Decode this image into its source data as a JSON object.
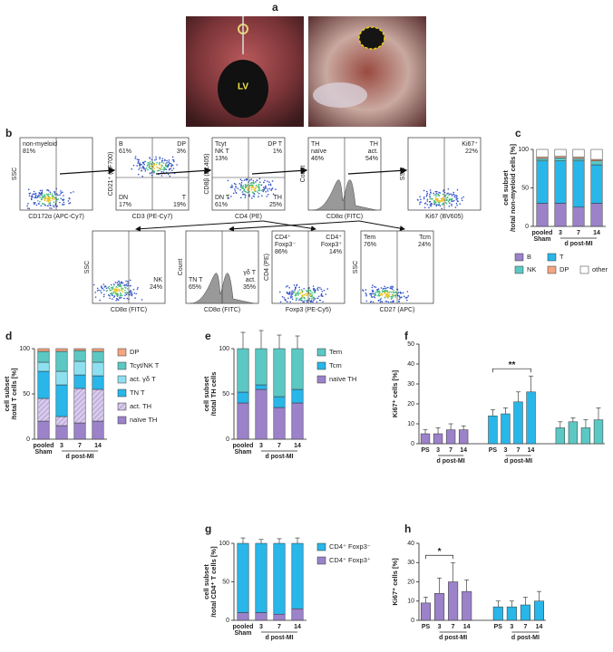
{
  "panel_labels": [
    "a",
    "b",
    "c",
    "d",
    "e",
    "f",
    "g",
    "h"
  ],
  "photo": {
    "label": "LV"
  },
  "flow_plots": [
    {
      "kind": "scatter",
      "xlabel": "CD172α (APC-Cy7)",
      "ylabel": "SSC",
      "gates": [
        {
          "corner": "tl",
          "lines": [
            "non-myeloid",
            "81%"
          ]
        }
      ]
    },
    {
      "kind": "scatter",
      "xlabel": "CD3 (PE-Cy7)",
      "ylabel": "CD21⁺ (AF700)",
      "gates": [
        {
          "corner": "tl",
          "lines": [
            "B",
            "61%"
          ]
        },
        {
          "corner": "tr",
          "lines": [
            "DP",
            "3%"
          ]
        },
        {
          "corner": "bl",
          "lines": [
            "DN",
            "17%"
          ]
        },
        {
          "corner": "br",
          "lines": [
            "T",
            "19%"
          ]
        }
      ]
    },
    {
      "kind": "scatter",
      "xlabel": "CD4 (PE)",
      "ylabel": "CD8β (DL405)",
      "gates": [
        {
          "corner": "tl",
          "lines": [
            "Tcyt",
            "NK T",
            "13%"
          ]
        },
        {
          "corner": "tr",
          "lines": [
            "DP T",
            "1%"
          ]
        },
        {
          "corner": "bl",
          "lines": [
            "DN T",
            "61%"
          ]
        },
        {
          "corner": "br",
          "lines": [
            "TH",
            "25%"
          ]
        }
      ]
    },
    {
      "kind": "histogram",
      "xlabel": "CD8α (FITC)",
      "ylabel": "Count",
      "gates": [
        {
          "corner": "tl",
          "lines": [
            "TH",
            "naïve",
            "46%"
          ]
        },
        {
          "corner": "tr",
          "lines": [
            "TH",
            "act.",
            "54%"
          ]
        }
      ]
    },
    {
      "kind": "scatter",
      "xlabel": "Ki67 (BV605)",
      "ylabel": "SSC",
      "gates": [
        {
          "corner": "tr",
          "lines": [
            "Ki67⁺",
            "22%"
          ]
        }
      ]
    },
    {
      "kind": "scatter",
      "xlabel": "CD8α (FITC)",
      "ylabel": "SSC",
      "gates": [
        {
          "corner": "br",
          "lines": [
            "NK",
            "24%"
          ]
        }
      ]
    },
    {
      "kind": "histogram",
      "xlabel": "CD8α (FITC)",
      "ylabel": "Count",
      "gates": [
        {
          "corner": "bl",
          "lines": [
            "TN T",
            "65%"
          ]
        },
        {
          "corner": "br",
          "lines": [
            "γδ T",
            "act.",
            "35%"
          ]
        }
      ]
    },
    {
      "kind": "scatter",
      "xlabel": "Foxp3 (PE-Cy5)",
      "ylabel": "CD4 (PE)",
      "gates": [
        {
          "corner": "tl",
          "lines": [
            "CD4⁺",
            "Foxp3⁻",
            "86%"
          ]
        },
        {
          "corner": "tr",
          "lines": [
            "CD4⁺",
            "Foxp3⁺",
            "14%"
          ]
        }
      ]
    },
    {
      "kind": "scatter",
      "xlabel": "CD27 (APC)",
      "ylabel": "SSC",
      "gates": [
        {
          "corner": "tl",
          "lines": [
            "Tem",
            "76%"
          ]
        },
        {
          "corner": "tr",
          "lines": [
            "Tcm",
            "24%"
          ]
        }
      ]
    }
  ],
  "chart_data": [
    {
      "type": "stacked_bar",
      "ylabel": [
        "cell subset",
        "/total non-myeloid cells [%]"
      ],
      "categories": [
        "pooled",
        "3",
        "7",
        "14"
      ],
      "group_labels": [
        "Sham",
        "d post-MI"
      ],
      "ylim": [
        0,
        100
      ],
      "yticks": [
        0,
        50,
        100
      ],
      "legend": "bottom",
      "series": [
        {
          "name": "B",
          "color": "#9b82c9",
          "values": [
            30,
            30,
            25,
            30
          ],
          "errors": [
            5,
            6,
            5,
            6
          ]
        },
        {
          "name": "T",
          "color": "#29b6e8",
          "values": [
            55,
            55,
            60,
            50
          ],
          "errors": [
            4,
            5,
            4,
            5
          ]
        },
        {
          "name": "NK",
          "color": "#5cc8c4",
          "values": [
            3,
            4,
            3,
            5
          ]
        },
        {
          "name": "DP",
          "color": "#f4a582",
          "values": [
            2,
            2,
            2,
            2
          ]
        },
        {
          "name": "other",
          "color": "#ffffff",
          "values": [
            10,
            9,
            10,
            13
          ]
        }
      ]
    },
    {
      "type": "stacked_bar",
      "ylabel": [
        "cell subset",
        "/total T cells  [%]"
      ],
      "categories": [
        "pooled",
        "3",
        "7",
        "14"
      ],
      "group_labels": [
        "Sham",
        "d post-MI"
      ],
      "ylim": [
        0,
        100
      ],
      "yticks": [
        0,
        50,
        100
      ],
      "legend": "right",
      "series": [
        {
          "name": "naïve TH",
          "color": "#9b82c9",
          "values": [
            20,
            15,
            18,
            20
          ],
          "errors": [
            4,
            3,
            4,
            5
          ]
        },
        {
          "name": "act. TH",
          "color": "#d8cbeb",
          "hatch": true,
          "values": [
            25,
            10,
            38,
            35
          ],
          "errors": [
            5,
            4,
            6,
            5
          ]
        },
        {
          "name": "TN T",
          "color": "#29b6e8",
          "values": [
            30,
            35,
            15,
            15
          ],
          "errors": [
            5,
            6,
            4,
            4
          ]
        },
        {
          "name": "act. γδ T",
          "color": "#8ee0f0",
          "values": [
            10,
            15,
            15,
            15
          ]
        },
        {
          "name": "Tcyt/NK T",
          "color": "#5cc8c4",
          "values": [
            12,
            22,
            12,
            12
          ]
        },
        {
          "name": "DP",
          "color": "#f4a582",
          "values": [
            3,
            3,
            2,
            3
          ]
        }
      ]
    },
    {
      "type": "stacked_bar",
      "ylabel": [
        "cell subset",
        "/total TH cells"
      ],
      "categories": [
        "pooled",
        "3",
        "7",
        "14"
      ],
      "group_labels": [
        "Sham",
        "d post-MI"
      ],
      "ylim": [
        0,
        100
      ],
      "yticks": [
        0,
        50,
        100
      ],
      "legend": "right",
      "series": [
        {
          "name": "naïve TH",
          "color": "#9b82c9",
          "values": [
            40,
            55,
            35,
            40
          ],
          "errors": [
            8,
            10,
            9,
            8
          ]
        },
        {
          "name": "Tcm",
          "color": "#29b6e8",
          "values": [
            12,
            5,
            12,
            15
          ],
          "errors": [
            4,
            3,
            4,
            5
          ]
        },
        {
          "name": "Tem",
          "color": "#5cc8c4",
          "values": [
            48,
            40,
            53,
            45
          ],
          "errors": [
            18,
            20,
            15,
            14
          ]
        }
      ]
    },
    {
      "type": "grouped_bar",
      "ylabel": [
        "Ki67⁺ cells [%]"
      ],
      "categories": [
        "PS",
        "3",
        "7",
        "14"
      ],
      "group_labels": [
        "d post-MI",
        "d post-MI"
      ],
      "ylim": [
        0,
        50
      ],
      "yticks": [
        0,
        10,
        20,
        30,
        40,
        50
      ],
      "series": [
        {
          "color": "#9b82c9",
          "values": [
            5,
            5,
            7,
            7
          ],
          "errors": [
            2,
            3,
            3,
            2
          ]
        },
        {
          "color": "#29b6e8",
          "values": [
            14,
            15,
            21,
            26
          ],
          "errors": [
            3,
            3,
            5,
            8
          ]
        },
        {
          "color": "#5cc8c4",
          "values": [
            8,
            11,
            8,
            12
          ],
          "errors": [
            3,
            2,
            4,
            6
          ]
        }
      ],
      "annotations": [
        {
          "text": "**",
          "series": 1,
          "from": 0,
          "to": 3
        }
      ]
    },
    {
      "type": "stacked_bar",
      "ylabel": [
        "cell subset",
        "/total CD4⁺ T cells [%]"
      ],
      "categories": [
        "pooled",
        "3",
        "7",
        "14"
      ],
      "group_labels": [
        "Sham",
        "d post-MI"
      ],
      "ylim": [
        0,
        100
      ],
      "yticks": [
        0,
        50,
        100
      ],
      "legend": "right",
      "series": [
        {
          "name": "CD4⁺ Foxp3⁺",
          "color": "#9b82c9",
          "values": [
            10,
            10,
            8,
            15
          ],
          "errors": [
            4,
            4,
            3,
            6
          ]
        },
        {
          "name": "CD4⁺ Foxp3⁻",
          "color": "#29b6e8",
          "values": [
            90,
            90,
            92,
            85
          ],
          "errors": [
            7,
            5,
            6,
            7
          ]
        }
      ]
    },
    {
      "type": "grouped_bar",
      "ylabel": [
        "Ki67⁺ cells [%]"
      ],
      "categories": [
        "PS",
        "3",
        "7",
        "14"
      ],
      "group_labels": [
        "d post-MI",
        "d post-MI"
      ],
      "ylim": [
        0,
        40
      ],
      "yticks": [
        0,
        10,
        20,
        30,
        40
      ],
      "series": [
        {
          "color": "#9b82c9",
          "values": [
            9,
            14,
            20,
            15
          ],
          "errors": [
            3,
            8,
            10,
            6
          ]
        },
        {
          "color": "#29b6e8",
          "values": [
            7,
            7,
            8,
            10
          ],
          "errors": [
            3,
            3,
            4,
            5
          ]
        }
      ],
      "annotations": [
        {
          "text": "*",
          "series": 0,
          "from": 0,
          "to": 2
        }
      ]
    }
  ]
}
